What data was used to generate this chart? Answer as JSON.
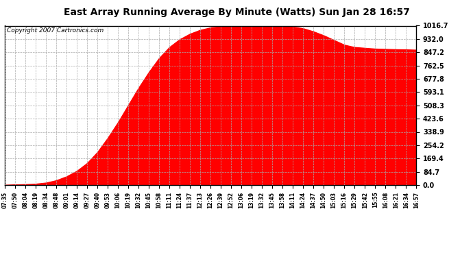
{
  "title": "East Array Running Average By Minute (Watts) Sun Jan 28 16:57",
  "copyright": "Copyright 2007 Cartronics.com",
  "fill_color": "#FF0000",
  "background_color": "#FFFFFF",
  "grid_color": "#AAAAAA",
  "ytick_labels": [
    "0.0",
    "84.7",
    "169.4",
    "254.2",
    "338.9",
    "423.6",
    "508.3",
    "593.1",
    "677.8",
    "762.5",
    "847.2",
    "932.0",
    "1016.7"
  ],
  "ytick_values": [
    0.0,
    84.7,
    169.4,
    254.2,
    338.9,
    423.6,
    508.3,
    593.1,
    677.8,
    762.5,
    847.2,
    932.0,
    1016.7
  ],
  "ymax": 1016.7,
  "xtick_labels": [
    "07:35",
    "07:50",
    "08:04",
    "08:19",
    "08:34",
    "08:48",
    "09:01",
    "09:14",
    "09:27",
    "09:40",
    "09:53",
    "10:06",
    "10:19",
    "10:32",
    "10:45",
    "10:58",
    "11:11",
    "11:24",
    "11:37",
    "12:13",
    "12:26",
    "12:39",
    "12:52",
    "13:06",
    "13:19",
    "13:32",
    "13:45",
    "13:58",
    "14:11",
    "14:24",
    "14:37",
    "14:50",
    "15:03",
    "15:16",
    "15:29",
    "15:42",
    "15:55",
    "16:08",
    "16:21",
    "16:34",
    "16:57"
  ],
  "num_xticks": 41,
  "curve_x_indices": [
    0,
    1,
    2,
    3,
    4,
    5,
    6,
    7,
    8,
    9,
    10,
    11,
    12,
    13,
    14,
    15,
    16,
    17,
    18,
    19,
    20,
    21,
    22,
    23,
    24,
    25,
    26,
    27,
    28,
    29,
    30,
    31,
    32,
    33,
    34,
    35,
    36,
    37,
    38,
    39,
    40
  ],
  "curve_y_values": [
    0.0,
    3.0,
    5.0,
    8.0,
    15.0,
    30.0,
    55.0,
    90.0,
    140.0,
    210.0,
    300.0,
    400.0,
    510.0,
    620.0,
    720.0,
    810.0,
    880.0,
    930.0,
    965.0,
    990.0,
    1005.0,
    1012.0,
    1016.7,
    1016.7,
    1016.7,
    1016.7,
    1016.7,
    1016.0,
    1010.0,
    1000.0,
    980.0,
    955.0,
    925.0,
    895.0,
    880.0,
    875.0,
    870.0,
    868.0,
    866.0,
    865.0,
    863.0
  ],
  "title_fontsize": 10,
  "copyright_fontsize": 6.5,
  "ytick_fontsize": 7,
  "xtick_fontsize": 5.5
}
